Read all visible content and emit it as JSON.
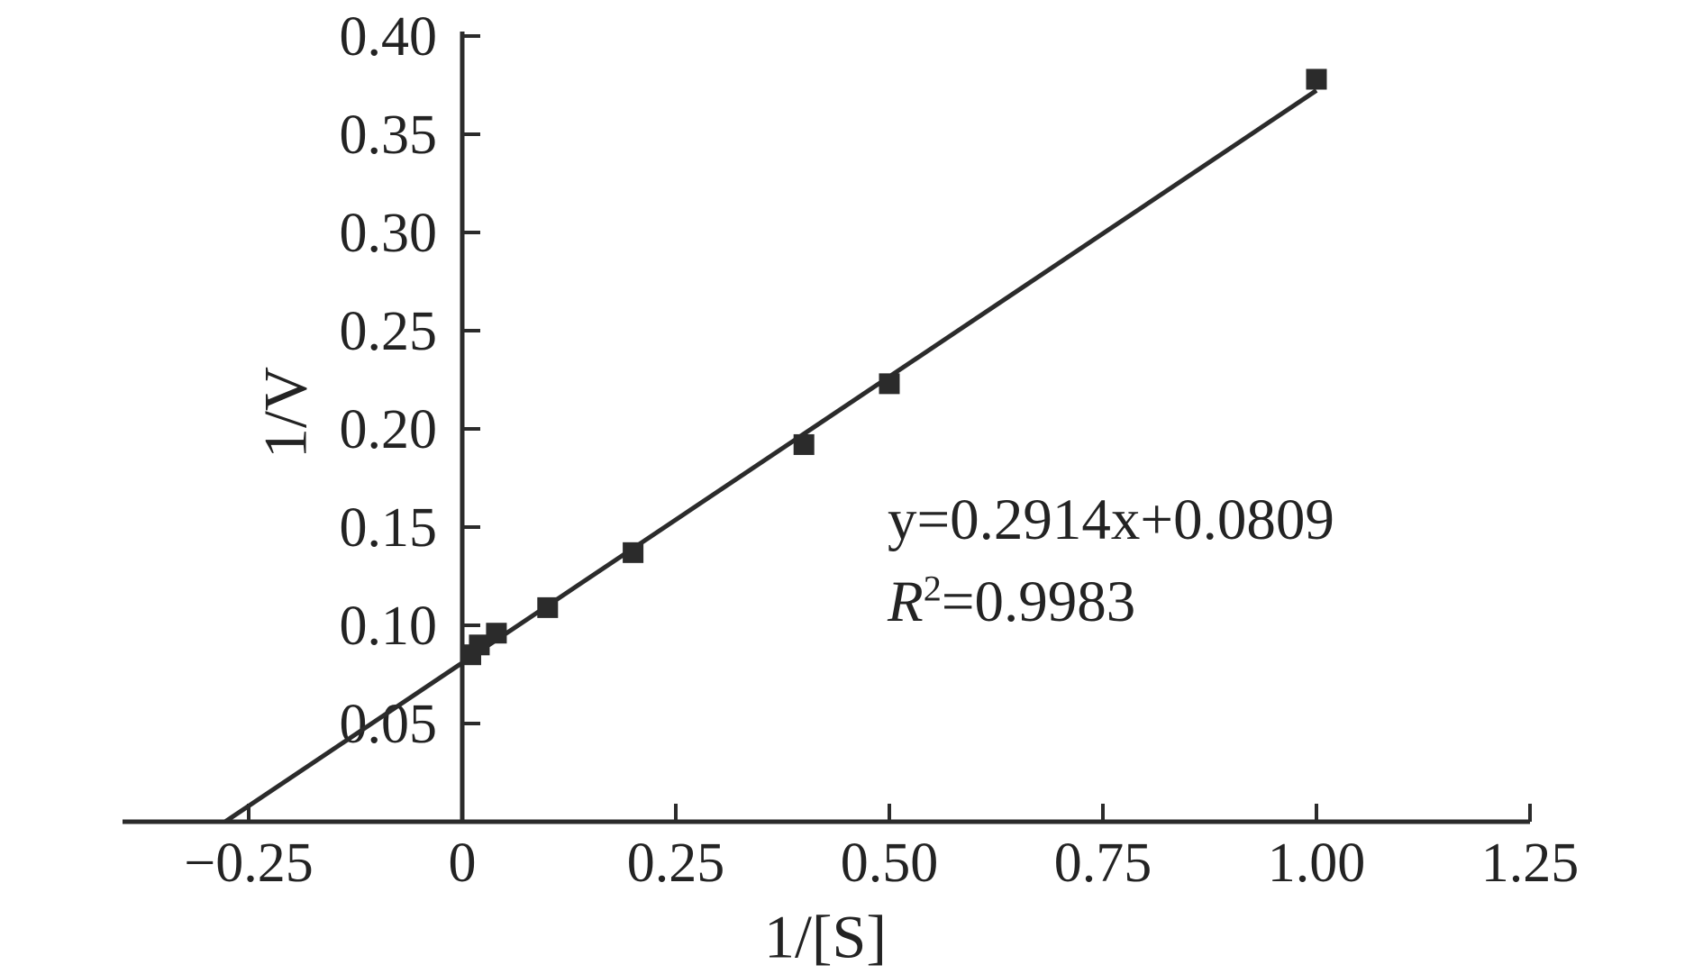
{
  "figure": {
    "background_color": "#ffffff",
    "ink_color": "#2b2b2b",
    "xlabel": "1/[S]",
    "ylabel": "1/V",
    "annotation": {
      "equation": "y=0.2914x+0.0809",
      "r2_symbol": "R",
      "r2_superscript": "2",
      "r2_value": "=0.9983"
    }
  },
  "chart_data": {
    "type": "scatter",
    "title": "",
    "xlabel": "1/[S]",
    "ylabel": "1/V",
    "xlim": [
      -0.4,
      1.25
    ],
    "ylim": [
      0,
      0.4
    ],
    "grid": false,
    "legend": null,
    "marker": "square",
    "x_ticks": [
      -0.25,
      0,
      0.25,
      0.5,
      0.75,
      1.0,
      1.25
    ],
    "x_tick_labels": [
      "−0.25",
      "0",
      "0.25",
      "0.50",
      "0.75",
      "1.00",
      "1.25"
    ],
    "y_ticks": [
      0.05,
      0.1,
      0.15,
      0.2,
      0.25,
      0.3,
      0.35,
      0.4
    ],
    "y_tick_labels": [
      "0.05",
      "0.10",
      "0.15",
      "0.20",
      "0.25",
      "0.30",
      "0.35",
      "0.40"
    ],
    "points": [
      [
        0.01,
        0.085
      ],
      [
        0.02,
        0.09
      ],
      [
        0.04,
        0.096
      ],
      [
        0.1,
        0.109
      ],
      [
        0.2,
        0.137
      ],
      [
        0.4,
        0.192
      ],
      [
        0.5,
        0.223
      ],
      [
        1.0,
        0.378
      ]
    ],
    "fit_line": {
      "slope": 0.2914,
      "intercept": 0.0809,
      "r_squared": 0.9983,
      "x_end": 1.0,
      "starts_at_x_axis_intercept": true
    }
  }
}
